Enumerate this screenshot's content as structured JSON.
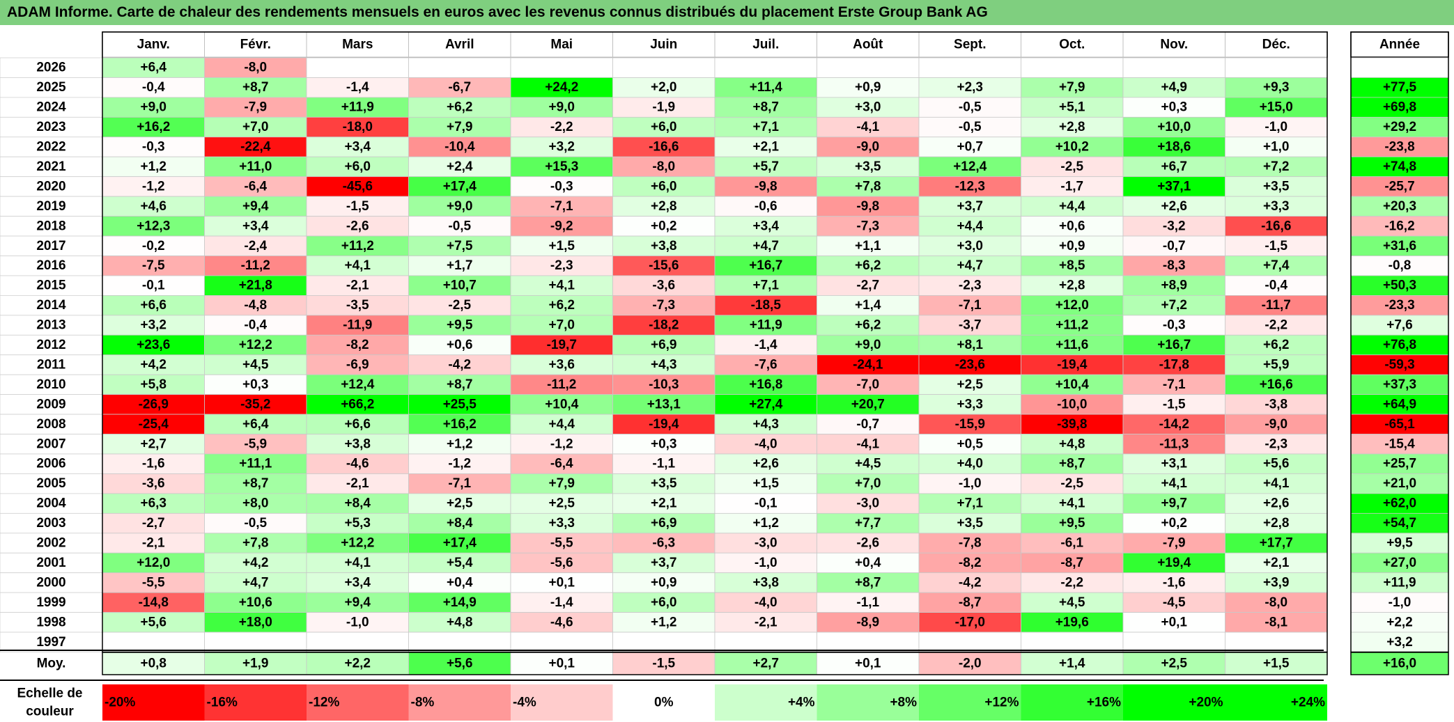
{
  "title": "ADAM Informe. Carte de chaleur des rendements mensuels en euros avec les revenus connus distribués du placement Erste Group Bank AG",
  "chart_data": {
    "type": "heatmap",
    "title": "ADAM Informe. Carte de chaleur des rendements mensuels en euros avec les revenus connus distribués du placement Erste Group Bank AG",
    "columns": [
      "Janv.",
      "Févr.",
      "Mars",
      "Avril",
      "Mai",
      "Juin",
      "Juil.",
      "Août",
      "Sept.",
      "Oct.",
      "Nov.",
      "Déc."
    ],
    "annual_label": "Année",
    "years": [
      "2026",
      "2025",
      "2024",
      "2023",
      "2022",
      "2021",
      "2020",
      "2019",
      "2018",
      "2017",
      "2016",
      "2015",
      "2014",
      "2013",
      "2012",
      "2011",
      "2010",
      "2009",
      "2008",
      "2007",
      "2006",
      "2005",
      "2004",
      "2003",
      "2002",
      "2001",
      "2000",
      "1999",
      "1998",
      "1997"
    ],
    "values": [
      [
        "+6,4",
        "-8,0",
        "",
        "",
        "",
        "",
        "",
        "",
        "",
        "",
        "",
        ""
      ],
      [
        "-0,4",
        "+8,7",
        "-1,4",
        "-6,7",
        "+24,2",
        "+2,0",
        "+11,4",
        "+0,9",
        "+2,3",
        "+7,9",
        "+4,9",
        "+9,3"
      ],
      [
        "+9,0",
        "-7,9",
        "+11,9",
        "+6,2",
        "+9,0",
        "-1,9",
        "+8,7",
        "+3,0",
        "-0,5",
        "+5,1",
        "+0,3",
        "+15,0"
      ],
      [
        "+16,2",
        "+7,0",
        "-18,0",
        "+7,9",
        "-2,2",
        "+6,0",
        "+7,1",
        "-4,1",
        "-0,5",
        "+2,8",
        "+10,0",
        "-1,0"
      ],
      [
        "-0,3",
        "-22,4",
        "+3,4",
        "-10,4",
        "+3,2",
        "-16,6",
        "+2,1",
        "-9,0",
        "+0,7",
        "+10,2",
        "+18,6",
        "+1,0"
      ],
      [
        "+1,2",
        "+11,0",
        "+6,0",
        "+2,4",
        "+15,3",
        "-8,0",
        "+5,7",
        "+3,5",
        "+12,4",
        "-2,5",
        "+6,7",
        "+7,2"
      ],
      [
        "-1,2",
        "-6,4",
        "-45,6",
        "+17,4",
        "-0,3",
        "+6,0",
        "-9,8",
        "+7,8",
        "-12,3",
        "-1,7",
        "+37,1",
        "+3,5"
      ],
      [
        "+4,6",
        "+9,4",
        "-1,5",
        "+9,0",
        "-7,1",
        "+2,8",
        "-0,6",
        "-9,8",
        "+3,7",
        "+4,4",
        "+2,6",
        "+3,3"
      ],
      [
        "+12,3",
        "+3,4",
        "-2,6",
        "-0,5",
        "-9,2",
        "+0,2",
        "+3,4",
        "-7,3",
        "+4,4",
        "+0,6",
        "-3,2",
        "-16,6"
      ],
      [
        "-0,2",
        "-2,4",
        "+11,2",
        "+7,5",
        "+1,5",
        "+3,8",
        "+4,7",
        "+1,1",
        "+3,0",
        "+0,9",
        "-0,7",
        "-1,5"
      ],
      [
        "-7,5",
        "-11,2",
        "+4,1",
        "+1,7",
        "-2,3",
        "-15,6",
        "+16,7",
        "+6,2",
        "+4,7",
        "+8,5",
        "-8,3",
        "+7,4"
      ],
      [
        "-0,1",
        "+21,8",
        "-2,1",
        "+10,7",
        "+4,1",
        "-3,6",
        "+7,1",
        "-2,7",
        "-2,3",
        "+2,8",
        "+8,9",
        "-0,4"
      ],
      [
        "+6,6",
        "-4,8",
        "-3,5",
        "-2,5",
        "+6,2",
        "-7,3",
        "-18,5",
        "+1,4",
        "-7,1",
        "+12,0",
        "+7,2",
        "-11,7"
      ],
      [
        "+3,2",
        "-0,4",
        "-11,9",
        "+9,5",
        "+7,0",
        "-18,2",
        "+11,9",
        "+6,2",
        "-3,7",
        "+11,2",
        "-0,3",
        "-2,2"
      ],
      [
        "+23,6",
        "+12,2",
        "-8,2",
        "+0,6",
        "-19,7",
        "+6,9",
        "-1,4",
        "+9,0",
        "+8,1",
        "+11,6",
        "+16,7",
        "+6,2"
      ],
      [
        "+4,2",
        "+4,5",
        "-6,9",
        "-4,2",
        "+3,6",
        "+4,3",
        "-7,6",
        "-24,1",
        "-23,6",
        "-19,4",
        "-17,8",
        "+5,9"
      ],
      [
        "+5,8",
        "+0,3",
        "+12,4",
        "+8,7",
        "-11,2",
        "-10,3",
        "+16,8",
        "-7,0",
        "+2,5",
        "+10,4",
        "-7,1",
        "+16,6"
      ],
      [
        "-26,9",
        "-35,2",
        "+66,2",
        "+25,5",
        "+10,4",
        "+13,1",
        "+27,4",
        "+20,7",
        "+3,3",
        "-10,0",
        "-1,5",
        "-3,8"
      ],
      [
        "-25,4",
        "+6,4",
        "+6,6",
        "+16,2",
        "+4,4",
        "-19,4",
        "+4,3",
        "-0,7",
        "-15,9",
        "-39,8",
        "-14,2",
        "-9,0"
      ],
      [
        "+2,7",
        "-5,9",
        "+3,8",
        "+1,2",
        "-1,2",
        "+0,3",
        "-4,0",
        "-4,1",
        "+0,5",
        "+4,8",
        "-11,3",
        "-2,3"
      ],
      [
        "-1,6",
        "+11,1",
        "-4,6",
        "-1,2",
        "-6,4",
        "-1,1",
        "+2,6",
        "+4,5",
        "+4,0",
        "+8,7",
        "+3,1",
        "+5,6"
      ],
      [
        "-3,6",
        "+8,7",
        "-2,1",
        "-7,1",
        "+7,9",
        "+3,5",
        "+1,5",
        "+7,0",
        "-1,0",
        "-2,5",
        "+4,1",
        "+4,1"
      ],
      [
        "+6,3",
        "+8,0",
        "+8,4",
        "+2,5",
        "+2,5",
        "+2,1",
        "-0,1",
        "-3,0",
        "+7,1",
        "+4,1",
        "+9,7",
        "+2,6"
      ],
      [
        "-2,7",
        "-0,5",
        "+5,3",
        "+8,4",
        "+3,3",
        "+6,9",
        "+1,2",
        "+7,7",
        "+3,5",
        "+9,5",
        "+0,2",
        "+2,8"
      ],
      [
        "-2,1",
        "+7,8",
        "+12,2",
        "+17,4",
        "-5,5",
        "-6,3",
        "-3,0",
        "-2,6",
        "-7,8",
        "-6,1",
        "-7,9",
        "+17,7"
      ],
      [
        "+12,0",
        "+4,2",
        "+4,1",
        "+5,4",
        "-5,6",
        "+3,7",
        "-1,0",
        "+0,4",
        "-8,2",
        "-8,7",
        "+19,4",
        "+2,1"
      ],
      [
        "-5,5",
        "+4,7",
        "+3,4",
        "+0,4",
        "+0,1",
        "+0,9",
        "+3,8",
        "+8,7",
        "-4,2",
        "-2,2",
        "-1,6",
        "+3,9"
      ],
      [
        "-14,8",
        "+10,6",
        "+9,4",
        "+14,9",
        "-1,4",
        "+6,0",
        "-4,0",
        "-1,1",
        "-8,7",
        "+4,5",
        "-4,5",
        "-8,0"
      ],
      [
        "+5,6",
        "+18,0",
        "-1,0",
        "+4,8",
        "-4,6",
        "+1,2",
        "-2,1",
        "-8,9",
        "-17,0",
        "+19,6",
        "+0,1",
        "-8,1"
      ],
      [
        "",
        "",
        "",
        "",
        "",
        "",
        "",
        "",
        "",
        "",
        "",
        ""
      ]
    ],
    "annual": [
      "",
      "+77,5",
      "+69,8",
      "+29,2",
      "-23,8",
      "+74,8",
      "-25,7",
      "+20,3",
      "-16,2",
      "+31,6",
      "-0,8",
      "+50,3",
      "-23,3",
      "+7,6",
      "+76,8",
      "-59,3",
      "+37,3",
      "+64,9",
      "-65,1",
      "-15,4",
      "+25,7",
      "+21,0",
      "+62,0",
      "+54,7",
      "+9,5",
      "+27,0",
      "+11,9",
      "-1,0",
      "+2,2",
      "+3,2"
    ],
    "avg_label": "Moy.",
    "averages": [
      "+0,8",
      "+1,9",
      "+2,2",
      "+5,6",
      "+0,1",
      "-1,5",
      "+2,7",
      "+0,1",
      "-2,0",
      "+1,4",
      "+2,5",
      "+1,5"
    ],
    "avg_annual": "+16,0",
    "scale_label": [
      "Echelle de",
      "couleur"
    ],
    "scale": [
      "-20%",
      "-16%",
      "-12%",
      "-8%",
      "-4%",
      "0%",
      "+4%",
      "+8%",
      "+12%",
      "+16%",
      "+20%",
      "+24%"
    ],
    "scale_values": [
      -20,
      -16,
      -12,
      -8,
      -4,
      0,
      4,
      8,
      12,
      16,
      20,
      24
    ],
    "colors": {
      "neg_max": "#ff0000",
      "pos_max": "#00ff00",
      "neutral": "#ffffff",
      "title_bg": "#7fcf7f"
    }
  }
}
